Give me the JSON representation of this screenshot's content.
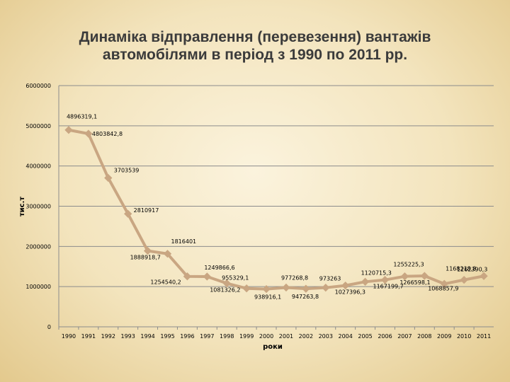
{
  "title_lines": [
    "Динаміка відправлення (перевезення) вантажів",
    "автомобілями в період з 1990 по 2011 рр."
  ],
  "colors": {
    "line": "#c9a682",
    "marker": "#c9a682",
    "gridline": "#8c8c8c"
  },
  "chart_data": {
    "type": "line",
    "title": "Динаміка відправлення (перевезення) вантажів автомобілями в період з 1990 по 2011 рр.",
    "xlabel": "роки",
    "ylabel": "тис.т",
    "ylim": [
      0,
      6000000
    ],
    "yticks": [
      "0",
      "1000000",
      "2000000",
      "3000000",
      "4000000",
      "5000000",
      "6000000"
    ],
    "grid": true,
    "legend": "none",
    "categories": [
      "1990",
      "1991",
      "1992",
      "1993",
      "1994",
      "1995",
      "1996",
      "1997",
      "1998",
      "1999",
      "2000",
      "2001",
      "2002",
      "2003",
      "2004",
      "2005",
      "2006",
      "2007",
      "2008",
      "2009",
      "2010",
      "2011"
    ],
    "series": [
      {
        "values": [
          4896319.1,
          4803842.8,
          3703539,
          2810917,
          1888918.7,
          1816401,
          1254540.2,
          1249866.6,
          1081326.2,
          955329.1,
          938916.1,
          977268.8,
          947263.8,
          973263,
          1027396.3,
          1120715.3,
          1167199.7,
          1255225.3,
          1266598.1,
          1068857.9,
          1168218.8,
          1262390.3
        ],
        "labels": [
          "4896319,1",
          "4803842,8",
          "3703539",
          "2810917",
          "1888918,7",
          "1816401",
          "1254540,2",
          "1249866,6",
          "1081326,2",
          "955329,1",
          "938916,1",
          "977268,8",
          "947263,8",
          "973263",
          "1027396,3",
          "1120715,3",
          "1167199,7",
          "1255225,3",
          "1266598,1",
          "1068857,9",
          "1168218,8",
          "1262390,3"
        ]
      }
    ]
  }
}
